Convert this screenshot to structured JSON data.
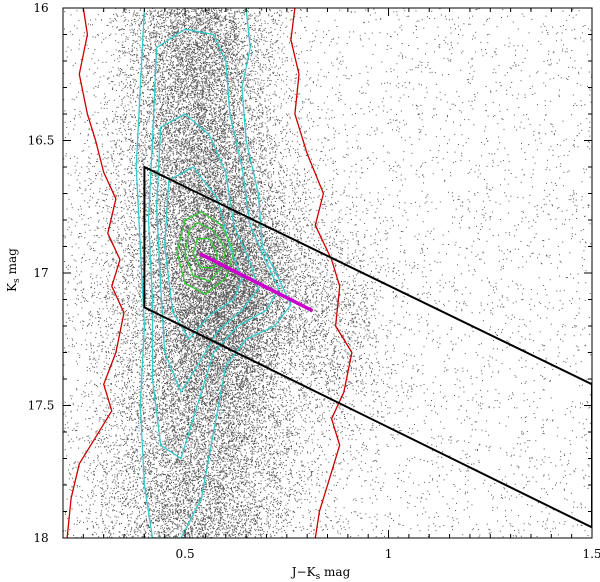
{
  "chart_data": {
    "type": "scatter",
    "title": "",
    "xlabel": "J−K",
    "xlabel_sub": "s",
    "xlabel_suffix": " mag",
    "ylabel": "K",
    "ylabel_sub": "s",
    "ylabel_suffix": " mag",
    "xlim": [
      0.2,
      1.5
    ],
    "ylim": [
      16,
      18
    ],
    "y_inverted": true,
    "grid": false,
    "x_ticks": [
      {
        "value": 0.5,
        "label": "0.5"
      },
      {
        "value": 1,
        "label": "1"
      },
      {
        "value": 1.5,
        "label": "1.5"
      }
    ],
    "y_ticks": [
      {
        "value": 16,
        "label": "16"
      },
      {
        "value": 16.5,
        "label": "16.5"
      },
      {
        "value": 17,
        "label": "17"
      },
      {
        "value": 17.5,
        "label": "17.5"
      },
      {
        "value": 18,
        "label": "18"
      }
    ],
    "density": {
      "ridge_color_mean": 0.53,
      "ridge_color_center_mag": 17.0,
      "ridge_sigma_color": 0.09,
      "mag_center": 17.0,
      "mag_sigma": 0.9,
      "clump_color": 0.6,
      "clump_mag": 17.05,
      "clump_sigma_color": 0.07,
      "clump_sigma_mag": 0.25,
      "point_color": "#555555"
    },
    "selection_box": {
      "color": "#000000",
      "vertices": [
        [
          0.4,
          16.6
        ],
        [
          1.5,
          17.42
        ],
        [
          1.5,
          17.96
        ],
        [
          0.4,
          17.13
        ]
      ]
    },
    "reddening_vector": {
      "color": "#cc00cc",
      "from": [
        0.54,
        16.93
      ],
      "to": [
        0.81,
        17.14
      ]
    },
    "contours": [
      {
        "name": "outer-left",
        "color": "#cc0000",
        "points": [
          [
            0.25,
            16.0
          ],
          [
            0.26,
            16.1
          ],
          [
            0.24,
            16.25
          ],
          [
            0.26,
            16.4
          ],
          [
            0.28,
            16.5
          ],
          [
            0.3,
            16.62
          ],
          [
            0.33,
            16.72
          ],
          [
            0.31,
            16.85
          ],
          [
            0.34,
            16.95
          ],
          [
            0.32,
            17.05
          ],
          [
            0.35,
            17.15
          ],
          [
            0.33,
            17.3
          ],
          [
            0.3,
            17.42
          ],
          [
            0.32,
            17.52
          ],
          [
            0.28,
            17.62
          ],
          [
            0.24,
            17.72
          ],
          [
            0.22,
            17.85
          ],
          [
            0.21,
            18.0
          ]
        ]
      },
      {
        "name": "outer-right",
        "color": "#cc0000",
        "points": [
          [
            0.77,
            16.0
          ],
          [
            0.76,
            16.12
          ],
          [
            0.78,
            16.25
          ],
          [
            0.77,
            16.4
          ],
          [
            0.8,
            16.55
          ],
          [
            0.84,
            16.7
          ],
          [
            0.82,
            16.82
          ],
          [
            0.86,
            16.95
          ],
          [
            0.88,
            17.05
          ],
          [
            0.87,
            17.2
          ],
          [
            0.91,
            17.3
          ],
          [
            0.89,
            17.45
          ],
          [
            0.86,
            17.55
          ],
          [
            0.88,
            17.65
          ],
          [
            0.86,
            17.75
          ],
          [
            0.83,
            17.9
          ],
          [
            0.82,
            18.0
          ]
        ]
      },
      {
        "name": "level-1",
        "color": "#33cccc",
        "points": [
          [
            0.4,
            16.0
          ],
          [
            0.39,
            16.3
          ],
          [
            0.38,
            16.6
          ],
          [
            0.39,
            16.9
          ],
          [
            0.4,
            17.2
          ],
          [
            0.39,
            17.5
          ],
          [
            0.4,
            17.8
          ],
          [
            0.42,
            18.0
          ],
          [
            0.49,
            18.0
          ],
          [
            0.54,
            17.85
          ],
          [
            0.57,
            17.6
          ],
          [
            0.6,
            17.35
          ],
          [
            0.65,
            17.25
          ],
          [
            0.72,
            17.2
          ],
          [
            0.76,
            17.12
          ],
          [
            0.73,
            17.02
          ],
          [
            0.69,
            16.9
          ],
          [
            0.68,
            16.7
          ],
          [
            0.65,
            16.5
          ],
          [
            0.64,
            16.3
          ],
          [
            0.66,
            16.15
          ],
          [
            0.65,
            16.0
          ]
        ]
      },
      {
        "name": "level-2",
        "color": "#33cccc",
        "points": [
          [
            0.43,
            16.15
          ],
          [
            0.42,
            16.5
          ],
          [
            0.41,
            16.8
          ],
          [
            0.42,
            17.1
          ],
          [
            0.42,
            17.4
          ],
          [
            0.44,
            17.65
          ],
          [
            0.49,
            17.7
          ],
          [
            0.53,
            17.5
          ],
          [
            0.57,
            17.3
          ],
          [
            0.63,
            17.2
          ],
          [
            0.7,
            17.14
          ],
          [
            0.73,
            17.06
          ],
          [
            0.7,
            16.96
          ],
          [
            0.66,
            16.82
          ],
          [
            0.64,
            16.6
          ],
          [
            0.61,
            16.4
          ],
          [
            0.6,
            16.2
          ],
          [
            0.57,
            16.1
          ],
          [
            0.5,
            16.08
          ],
          [
            0.43,
            16.15
          ]
        ]
      },
      {
        "name": "level-3",
        "color": "#33cccc",
        "points": [
          [
            0.44,
            16.45
          ],
          [
            0.43,
            16.75
          ],
          [
            0.44,
            17.05
          ],
          [
            0.45,
            17.3
          ],
          [
            0.49,
            17.45
          ],
          [
            0.53,
            17.35
          ],
          [
            0.58,
            17.22
          ],
          [
            0.64,
            17.14
          ],
          [
            0.68,
            17.06
          ],
          [
            0.66,
            16.96
          ],
          [
            0.62,
            16.82
          ],
          [
            0.6,
            16.62
          ],
          [
            0.56,
            16.48
          ],
          [
            0.5,
            16.4
          ],
          [
            0.44,
            16.45
          ]
        ]
      },
      {
        "name": "level-4",
        "color": "#33cccc",
        "points": [
          [
            0.46,
            16.65
          ],
          [
            0.45,
            16.9
          ],
          [
            0.47,
            17.15
          ],
          [
            0.51,
            17.25
          ],
          [
            0.56,
            17.16
          ],
          [
            0.62,
            17.1
          ],
          [
            0.64,
            17.02
          ],
          [
            0.61,
            16.9
          ],
          [
            0.58,
            16.72
          ],
          [
            0.52,
            16.6
          ],
          [
            0.46,
            16.65
          ]
        ]
      },
      {
        "name": "core-1",
        "color": "#33cc33",
        "points": [
          [
            0.5,
            16.8
          ],
          [
            0.48,
            16.92
          ],
          [
            0.5,
            17.04
          ],
          [
            0.55,
            17.08
          ],
          [
            0.6,
            17.02
          ],
          [
            0.62,
            16.92
          ],
          [
            0.59,
            16.82
          ],
          [
            0.54,
            16.77
          ],
          [
            0.5,
            16.8
          ]
        ]
      },
      {
        "name": "core-2",
        "color": "#33cc33",
        "points": [
          [
            0.51,
            16.84
          ],
          [
            0.5,
            16.93
          ],
          [
            0.52,
            17.01
          ],
          [
            0.56,
            17.03
          ],
          [
            0.59,
            16.98
          ],
          [
            0.6,
            16.91
          ],
          [
            0.57,
            16.84
          ],
          [
            0.53,
            16.81
          ],
          [
            0.51,
            16.84
          ]
        ]
      },
      {
        "name": "core-3",
        "color": "#33cc33",
        "points": [
          [
            0.53,
            16.87
          ],
          [
            0.52,
            16.93
          ],
          [
            0.54,
            16.98
          ],
          [
            0.57,
            16.98
          ],
          [
            0.58,
            16.93
          ],
          [
            0.56,
            16.87
          ],
          [
            0.53,
            16.87
          ]
        ]
      }
    ]
  }
}
